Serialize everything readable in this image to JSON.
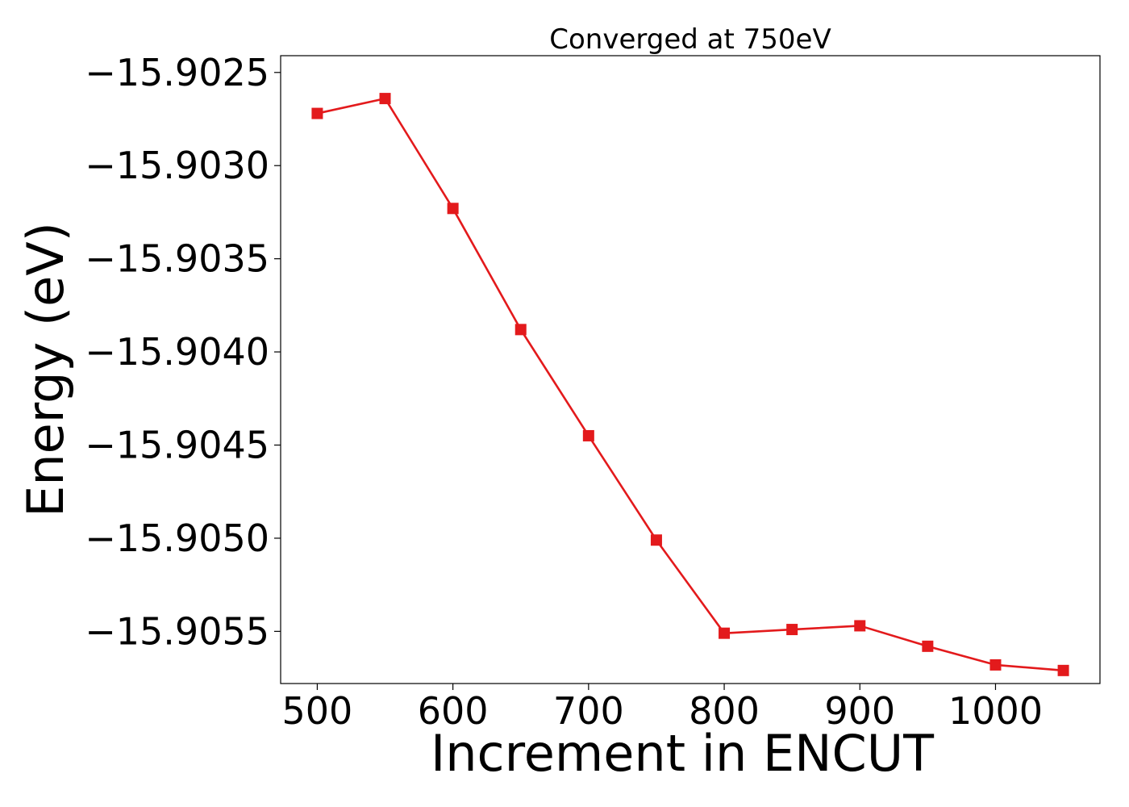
{
  "chart_data": {
    "type": "line",
    "title": "Converged at 750eV",
    "xlabel": "Increment in ENCUT",
    "ylabel": "Energy (eV)",
    "x": [
      500,
      550,
      600,
      650,
      700,
      750,
      800,
      850,
      900,
      950,
      1000,
      1050
    ],
    "series": [
      {
        "values": [
          -15.90272,
          -15.90264,
          -15.90323,
          -15.90388,
          -15.90445,
          -15.90501,
          -15.90551,
          -15.90549,
          -15.90547,
          -15.90558,
          -15.90568,
          -15.90571
        ],
        "color": "#e31a1c",
        "marker": "square"
      }
    ],
    "xlim": [
      473,
      1077
    ],
    "ylim": [
      -15.90578,
      -15.90241
    ],
    "xticks": [
      500,
      600,
      700,
      800,
      900,
      1000
    ],
    "xtick_labels": [
      "500",
      "600",
      "700",
      "800",
      "900",
      "1000"
    ],
    "yticks": [
      -15.9025,
      -15.903,
      -15.9035,
      -15.904,
      -15.9045,
      -15.905,
      -15.9055
    ],
    "ytick_labels": [
      "−15.9025",
      "−15.9030",
      "−15.9035",
      "−15.9040",
      "−15.9045",
      "−15.9050",
      "−15.9055"
    ],
    "grid": false
  }
}
